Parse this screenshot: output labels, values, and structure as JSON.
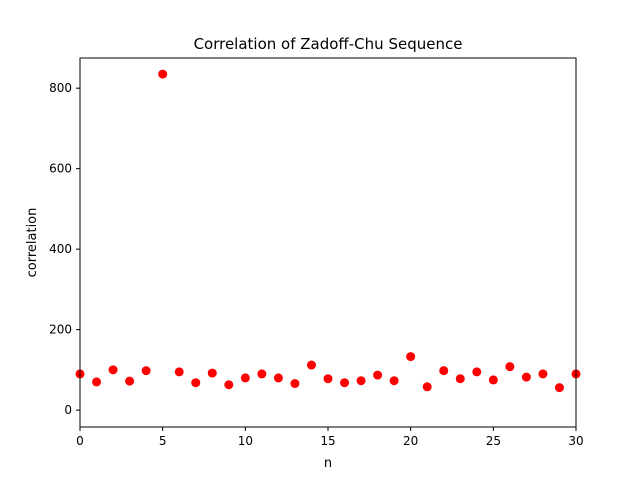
{
  "chart_data": {
    "type": "scatter",
    "title": "Correlation of Zadoff-Chu Sequence",
    "xlabel": "n",
    "ylabel": "correlation",
    "xlim": [
      0,
      30
    ],
    "ylim": [
      -42,
      875
    ],
    "xticks": [
      0,
      5,
      10,
      15,
      20,
      25,
      30
    ],
    "yticks": [
      0,
      200,
      400,
      600,
      800
    ],
    "grid": false,
    "marker_color": "#ff0000",
    "series": [
      {
        "x": [
          0,
          1,
          2,
          3,
          4,
          5,
          6,
          7,
          8,
          9,
          10,
          11,
          12,
          13,
          14,
          15,
          16,
          17,
          18,
          19,
          20,
          21,
          22,
          23,
          24,
          25,
          26,
          27,
          28,
          29,
          30
        ],
        "y": [
          90,
          70,
          100,
          72,
          98,
          835,
          95,
          68,
          92,
          63,
          80,
          90,
          80,
          66,
          112,
          78,
          68,
          73,
          87,
          73,
          133,
          58,
          98,
          78,
          95,
          75,
          108,
          82,
          90,
          56,
          90
        ]
      }
    ]
  }
}
